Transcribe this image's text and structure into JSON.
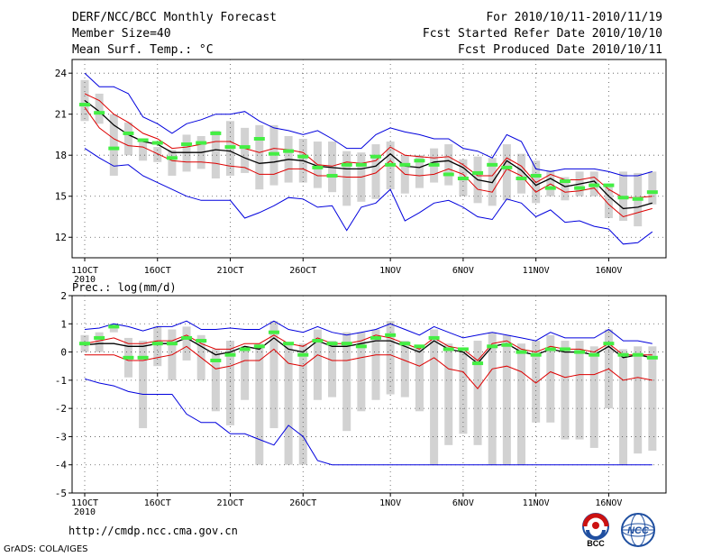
{
  "header": {
    "title": "DERF/NCC/BCC Monthly Forecast",
    "member_size": "Member Size=40",
    "variable": "Mean Surf. Temp.: °C",
    "forecast_range": "For 2010/10/11-2010/11/19",
    "fcst_started": "Fcst Started Refer Date 2010/10/10",
    "fcst_produced": "Fcst Produced Date 2010/10/11"
  },
  "footer": {
    "url": "http://cmdp.ncc.cma.gov.cn",
    "credit": "GrADS: COLA/IGES",
    "logo_bcc": "BCC",
    "logo_ncc": "NCC"
  },
  "colors": {
    "box": "#d2d2d2",
    "marker": "#44ee44",
    "mean": "#000000",
    "inner": "#dd0000",
    "outer": "#0000dd"
  },
  "chart_data": [
    {
      "type": "line",
      "title": "Mean Surf. Temp.: °C",
      "xlabel": "",
      "ylabel": "",
      "x_start_label": "2010",
      "xticks": [
        {
          "day": 1,
          "label": "11OCT"
        },
        {
          "day": 6,
          "label": "16OCT"
        },
        {
          "day": 11,
          "label": "21OCT"
        },
        {
          "day": 16,
          "label": "26OCT"
        },
        {
          "day": 22,
          "label": "1NOV"
        },
        {
          "day": 27,
          "label": "6NOV"
        },
        {
          "day": 32,
          "label": "11NOV"
        },
        {
          "day": 37,
          "label": "16NOV"
        }
      ],
      "ylim": [
        10.5,
        25
      ],
      "yticks": [
        12,
        15,
        18,
        21,
        24
      ],
      "grid": true,
      "days": [
        1,
        2,
        3,
        4,
        5,
        6,
        7,
        8,
        9,
        10,
        11,
        12,
        13,
        14,
        15,
        16,
        17,
        18,
        19,
        20,
        21,
        22,
        23,
        24,
        25,
        26,
        27,
        28,
        29,
        30,
        31,
        32,
        33,
        34,
        35,
        36,
        37,
        38,
        39,
        40
      ],
      "series": [
        {
          "name": "max",
          "role": "outer",
          "values": [
            24,
            23,
            23,
            22.5,
            20.8,
            20.3,
            19.6,
            20.3,
            20.6,
            21,
            21,
            21.2,
            20.5,
            20,
            19.8,
            19.5,
            19.8,
            19.2,
            18.5,
            18.5,
            19.5,
            20,
            19.7,
            19.5,
            19.2,
            19.2,
            18.5,
            18.3,
            17.8,
            19.5,
            19,
            17,
            16.8,
            17,
            17,
            17,
            16.8,
            16.5,
            16.5,
            16.8
          ]
        },
        {
          "name": "upper",
          "role": "inner",
          "values": [
            22.5,
            22,
            21,
            20.4,
            19.6,
            19.2,
            18.5,
            18.6,
            18.8,
            19,
            19,
            18.5,
            18.2,
            18.5,
            18.4,
            18.2,
            17.3,
            17.2,
            17.5,
            17.4,
            17.6,
            18.6,
            18,
            17.9,
            17.8,
            17.9,
            17.3,
            16.5,
            16.5,
            17.8,
            17.2,
            16,
            16.6,
            16.2,
            16.2,
            16.4,
            15.5,
            14.9,
            14.9,
            15
          ]
        },
        {
          "name": "mean",
          "role": "mean",
          "values": [
            22,
            21.2,
            20.2,
            19.5,
            19,
            18.8,
            18.2,
            18.2,
            18.2,
            18.4,
            18.3,
            17.8,
            17.4,
            17.5,
            17.7,
            17.6,
            17.2,
            17.1,
            17,
            17,
            17.2,
            18.1,
            17.2,
            17.1,
            17.5,
            17.6,
            17.1,
            16.2,
            16,
            17.6,
            16.9,
            15.8,
            16.3,
            15.7,
            15.9,
            16.1,
            15,
            14.1,
            14.2,
            14.5
          ]
        },
        {
          "name": "lower",
          "role": "inner",
          "values": [
            21.5,
            20,
            19.2,
            18.7,
            18.6,
            18.1,
            17.6,
            17.5,
            17.5,
            17.4,
            17.2,
            17.1,
            16.6,
            16.6,
            17,
            17,
            16.5,
            16.5,
            16.4,
            16.4,
            16.7,
            17.6,
            16.6,
            16.5,
            16.6,
            17,
            16.6,
            15.5,
            15.3,
            17,
            16.5,
            15.3,
            15.9,
            15.3,
            15.4,
            15.6,
            14.4,
            13.5,
            13.8,
            14.1
          ]
        },
        {
          "name": "min",
          "role": "outer",
          "values": [
            18.5,
            17.8,
            17.2,
            17.3,
            16.5,
            16,
            15.5,
            15,
            14.7,
            14.7,
            14.7,
            13.4,
            13.8,
            14.3,
            14.9,
            14.8,
            14.2,
            14.3,
            12.5,
            14.2,
            14.5,
            15.5,
            13.2,
            13.8,
            14.5,
            14.7,
            14.2,
            13.5,
            13.3,
            14.8,
            14.5,
            13.5,
            14,
            13.1,
            13.2,
            12.8,
            12.6,
            11.5,
            11.6,
            12.4
          ]
        }
      ],
      "box_low": [
        20.5,
        20.3,
        16.5,
        18,
        17.6,
        17.5,
        16.5,
        16.8,
        17,
        16.3,
        16.5,
        16.7,
        15.5,
        15.8,
        16,
        16,
        15.6,
        15.3,
        14.3,
        14.6,
        14.8,
        15.5,
        15.2,
        15.6,
        16,
        15.8,
        15,
        14.5,
        14.3,
        14.7,
        15.2,
        14.5,
        15,
        14.7,
        15,
        15,
        13.4,
        13.2,
        12.8,
        14.4
      ],
      "box_high": [
        23.5,
        22.5,
        21,
        20.4,
        19.2,
        18.6,
        18.4,
        19.5,
        19.4,
        19.8,
        20.5,
        20,
        20.2,
        20.2,
        19.4,
        19.2,
        19,
        19,
        18.3,
        18.2,
        18.8,
        19,
        18,
        18,
        18.5,
        18.8,
        17.7,
        17.9,
        17.8,
        18.8,
        18.1,
        17.6,
        16.9,
        16.4,
        16.8,
        16.8,
        15.8,
        16.8,
        16.7,
        16.8
      ],
      "markers": [
        21.7,
        21.1,
        18.5,
        19.6,
        19.1,
        18.9,
        17.8,
        18.8,
        18.9,
        19.6,
        18.6,
        18.6,
        19.2,
        18.1,
        18.3,
        17.9,
        17.1,
        16.5,
        17.3,
        17.3,
        17.9,
        17.3,
        17.3,
        17.6,
        17.3,
        16.6,
        16.3,
        16.7,
        17.3,
        17.1,
        16.3,
        16.5,
        15.6,
        16.1,
        15.6,
        15.8,
        15.8,
        14.9,
        14.8,
        15.3
      ]
    },
    {
      "type": "line",
      "title": "Prec.: log(mm/d)",
      "xlabel": "",
      "ylabel": "",
      "x_start_label": "2010",
      "xticks": [
        {
          "day": 1,
          "label": "11OCT"
        },
        {
          "day": 6,
          "label": "16OCT"
        },
        {
          "day": 11,
          "label": "21OCT"
        },
        {
          "day": 16,
          "label": "26OCT"
        },
        {
          "day": 22,
          "label": "1NOV"
        },
        {
          "day": 27,
          "label": "6NOV"
        },
        {
          "day": 32,
          "label": "11NOV"
        },
        {
          "day": 37,
          "label": "16NOV"
        }
      ],
      "ylim": [
        -5,
        2
      ],
      "yticks": [
        -5,
        -4,
        -3,
        -2,
        -1,
        0,
        1,
        2
      ],
      "grid": true,
      "days": [
        1,
        2,
        3,
        4,
        5,
        6,
        7,
        8,
        9,
        10,
        11,
        12,
        13,
        14,
        15,
        16,
        17,
        18,
        19,
        20,
        21,
        22,
        23,
        24,
        25,
        26,
        27,
        28,
        29,
        30,
        31,
        32,
        33,
        34,
        35,
        36,
        37,
        38,
        39,
        40
      ],
      "series": [
        {
          "name": "max",
          "role": "outer",
          "values": [
            0.8,
            0.85,
            1,
            0.9,
            0.75,
            0.9,
            0.9,
            1.1,
            0.8,
            0.8,
            0.85,
            0.8,
            0.8,
            1.1,
            0.8,
            0.7,
            0.9,
            0.7,
            0.6,
            0.7,
            0.8,
            1,
            0.8,
            0.6,
            0.9,
            0.7,
            0.5,
            0.6,
            0.7,
            0.6,
            0.5,
            0.4,
            0.7,
            0.5,
            0.5,
            0.5,
            0.8,
            0.4,
            0.4,
            0.3
          ]
        },
        {
          "name": "upper",
          "role": "inner",
          "values": [
            0.3,
            0.4,
            0.5,
            0.3,
            0.3,
            0.4,
            0.4,
            0.6,
            0.3,
            0.1,
            0.1,
            0.3,
            0.3,
            0.6,
            0.3,
            0.2,
            0.5,
            0.3,
            0.3,
            0.4,
            0.6,
            0.5,
            0.3,
            0.1,
            0.5,
            0.2,
            0.1,
            -0.3,
            0.3,
            0.4,
            0.1,
            0,
            0.2,
            0.1,
            0.1,
            0,
            0.3,
            -0.1,
            -0.1,
            -0.1
          ]
        },
        {
          "name": "mean",
          "role": "mean",
          "values": [
            0.25,
            0.3,
            0.3,
            0.2,
            0.2,
            0.3,
            0.3,
            0.5,
            0.2,
            -0.1,
            0,
            0.2,
            0.1,
            0.5,
            0.1,
            0,
            0.4,
            0.2,
            0.2,
            0.3,
            0.4,
            0.4,
            0.2,
            0,
            0.4,
            0.1,
            0,
            -0.4,
            0.2,
            0.3,
            0,
            -0.1,
            0.1,
            0,
            0,
            -0.1,
            0.2,
            -0.2,
            -0.1,
            -0.2
          ]
        },
        {
          "name": "lower",
          "role": "inner",
          "values": [
            -0.1,
            -0.1,
            -0.1,
            -0.3,
            -0.3,
            -0.2,
            -0.1,
            0.2,
            -0.2,
            -0.6,
            -0.5,
            -0.3,
            -0.3,
            0.1,
            -0.4,
            -0.5,
            -0.1,
            -0.3,
            -0.3,
            -0.2,
            -0.1,
            -0.1,
            -0.3,
            -0.5,
            -0.2,
            -0.6,
            -0.7,
            -1.3,
            -0.6,
            -0.5,
            -0.7,
            -1.1,
            -0.7,
            -0.9,
            -0.8,
            -0.8,
            -0.6,
            -1,
            -0.9,
            -1
          ]
        },
        {
          "name": "min",
          "role": "outer",
          "values": [
            -0.95,
            -1.1,
            -1.2,
            -1.4,
            -1.5,
            -1.5,
            -1.5,
            -2.2,
            -2.5,
            -2.5,
            -2.9,
            -2.9,
            -3.1,
            -3.3,
            -2.6,
            -3,
            -3.85,
            -4,
            -4,
            -4,
            -4,
            -4,
            -4,
            -4,
            -4,
            -4,
            -4,
            -4,
            -4,
            -4,
            -4,
            -4,
            -4,
            -4,
            -4,
            -4,
            -4,
            -4,
            -4,
            -4
          ]
        }
      ],
      "box_low": [
        0,
        0,
        0.7,
        -0.9,
        -2.7,
        -0.5,
        -1,
        -0.3,
        -1,
        -2.1,
        -2.6,
        -1.7,
        -4,
        -2.7,
        -4,
        -4,
        -1.7,
        -1.6,
        -2.8,
        -2.1,
        -1.7,
        -1.5,
        -1.6,
        -2.1,
        -4,
        -3.3,
        -2.9,
        -3.3,
        -4,
        -4,
        -4,
        -2.5,
        -2.5,
        -3.1,
        -3.1,
        -3.4,
        -2,
        -4,
        -3.6,
        -3.5
      ],
      "box_high": [
        0.6,
        0.7,
        1,
        0.5,
        0.4,
        0.9,
        0.8,
        0.9,
        0.6,
        0.1,
        0.4,
        0.2,
        0.3,
        1.1,
        0.3,
        0.3,
        0.8,
        0.4,
        0.7,
        0.7,
        0.8,
        1.1,
        0.4,
        0.2,
        0.8,
        0.3,
        0,
        0.4,
        0.7,
        0.6,
        0.3,
        0.4,
        0.6,
        0.4,
        0.4,
        0.2,
        0.8,
        0.1,
        0.2,
        0.2
      ],
      "markers": [
        0.3,
        0.5,
        0.9,
        -0.2,
        -0.2,
        0.3,
        0.3,
        0.5,
        0.4,
        -0.3,
        -0.1,
        0.1,
        0.2,
        0.7,
        0.3,
        -0.1,
        0.4,
        0.3,
        0.3,
        0.2,
        0.5,
        0.6,
        0.3,
        0.2,
        0.5,
        0.1,
        0.1,
        -0.4,
        0.2,
        0.25,
        0,
        -0.1,
        0.1,
        0.1,
        0,
        -0.1,
        0.3,
        -0.1,
        -0.1,
        -0.2
      ]
    }
  ]
}
